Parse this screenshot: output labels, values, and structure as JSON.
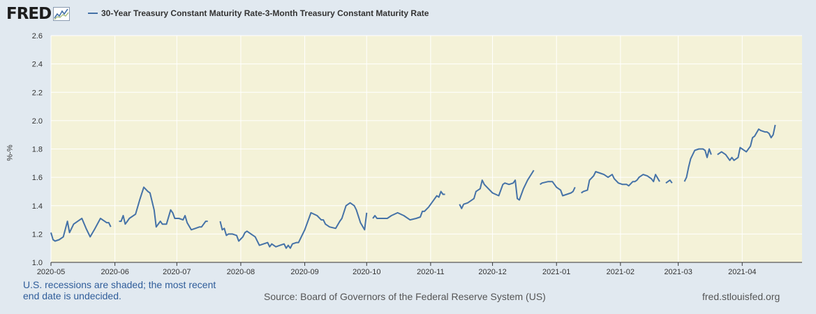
{
  "logo": {
    "text": "FRED",
    "icon": "line-chart-icon"
  },
  "colors": {
    "background": "#e1e9f0",
    "plot_background": "#f4f2d8",
    "series": "#4572a7",
    "accent": "#2f5d9a"
  },
  "footer": {
    "recession_note": "U.S. recessions are shaded; the most recent end date is undecided.",
    "source": "Source: Board of Governors of the Federal Reserve System (US)",
    "site": "fred.stlouisfed.org"
  },
  "chart_data": {
    "type": "line",
    "title": "",
    "xlabel": "",
    "ylabel": "%-%",
    "ylim": [
      1.0,
      2.6
    ],
    "yticks": [
      "1.0",
      "1.2",
      "1.4",
      "1.6",
      "1.8",
      "2.0",
      "2.2",
      "2.4",
      "2.6"
    ],
    "xlim": [
      "2020-05-01",
      "2021-04-30"
    ],
    "xticks": [
      "2020-05",
      "2020-06",
      "2020-07",
      "2020-08",
      "2020-09",
      "2020-10",
      "2020-11",
      "2020-12",
      "2021-01",
      "2021-02",
      "2021-03",
      "2021-04"
    ],
    "grid": true,
    "legend_position": "top-left",
    "series": [
      {
        "name": "30-Year Treasury Constant Maturity Rate-3-Month Treasury Constant Maturity Rate",
        "color": "#4572a7",
        "segments": [
          [
            [
              "2020-05-01",
              1.21
            ],
            [
              "2020-05-02",
              1.16
            ],
            [
              "2020-05-03",
              1.15
            ],
            [
              "2020-05-05",
              1.16
            ],
            [
              "2020-05-07",
              1.18
            ],
            [
              "2020-05-09",
              1.29
            ],
            [
              "2020-05-10",
              1.21
            ],
            [
              "2020-05-12",
              1.27
            ],
            [
              "2020-05-14",
              1.29
            ],
            [
              "2020-05-16",
              1.31
            ],
            [
              "2020-05-18",
              1.24
            ],
            [
              "2020-05-20",
              1.18
            ],
            [
              "2020-05-22",
              1.23
            ],
            [
              "2020-05-25",
              1.31
            ],
            [
              "2020-05-27",
              1.29
            ],
            [
              "2020-05-28",
              1.28
            ],
            [
              "2020-05-29",
              1.28
            ],
            [
              "2020-05-30",
              1.25
            ]
          ],
          [
            [
              "2020-06-03",
              1.29
            ],
            [
              "2020-06-04",
              1.29
            ],
            [
              "2020-06-05",
              1.33
            ],
            [
              "2020-06-06",
              1.27
            ],
            [
              "2020-06-07",
              1.29
            ],
            [
              "2020-06-08",
              1.31
            ],
            [
              "2020-06-11",
              1.34
            ],
            [
              "2020-06-13",
              1.44
            ],
            [
              "2020-06-15",
              1.53
            ],
            [
              "2020-06-17",
              1.5
            ],
            [
              "2020-06-18",
              1.49
            ],
            [
              "2020-06-20",
              1.37
            ],
            [
              "2020-06-21",
              1.25
            ],
            [
              "2020-06-23",
              1.29
            ],
            [
              "2020-06-24",
              1.27
            ],
            [
              "2020-06-26",
              1.27
            ],
            [
              "2020-06-28",
              1.37
            ],
            [
              "2020-06-29",
              1.35
            ],
            [
              "2020-06-30",
              1.31
            ],
            [
              "2020-07-02",
              1.31
            ],
            [
              "2020-07-04",
              1.3
            ],
            [
              "2020-07-05",
              1.33
            ],
            [
              "2020-07-06",
              1.28
            ],
            [
              "2020-07-08",
              1.23
            ],
            [
              "2020-07-10",
              1.24
            ],
            [
              "2020-07-12",
              1.25
            ],
            [
              "2020-07-13",
              1.25
            ],
            [
              "2020-07-15",
              1.29
            ],
            [
              "2020-07-16",
              1.29
            ]
          ],
          [
            [
              "2020-07-22",
              1.29
            ],
            [
              "2020-07-23",
              1.23
            ],
            [
              "2020-07-24",
              1.24
            ],
            [
              "2020-07-25",
              1.19
            ],
            [
              "2020-07-26",
              1.2
            ],
            [
              "2020-07-28",
              1.2
            ],
            [
              "2020-07-30",
              1.19
            ],
            [
              "2020-07-31",
              1.15
            ],
            [
              "2020-08-02",
              1.18
            ],
            [
              "2020-08-03",
              1.21
            ],
            [
              "2020-08-04",
              1.22
            ],
            [
              "2020-08-06",
              1.2
            ],
            [
              "2020-08-08",
              1.18
            ],
            [
              "2020-08-10",
              1.12
            ],
            [
              "2020-08-12",
              1.13
            ],
            [
              "2020-08-14",
              1.14
            ],
            [
              "2020-08-15",
              1.11
            ],
            [
              "2020-08-16",
              1.13
            ],
            [
              "2020-08-18",
              1.11
            ],
            [
              "2020-08-20",
              1.12
            ],
            [
              "2020-08-22",
              1.13
            ],
            [
              "2020-08-23",
              1.1
            ],
            [
              "2020-08-24",
              1.12
            ],
            [
              "2020-08-25",
              1.1
            ],
            [
              "2020-08-26",
              1.13
            ],
            [
              "2020-08-28",
              1.14
            ],
            [
              "2020-08-29",
              1.14
            ],
            [
              "2020-08-31",
              1.2
            ],
            [
              "2020-09-01",
              1.23
            ],
            [
              "2020-09-04",
              1.35
            ],
            [
              "2020-09-07",
              1.33
            ],
            [
              "2020-09-09",
              1.3
            ],
            [
              "2020-09-10",
              1.3
            ],
            [
              "2020-09-11",
              1.27
            ],
            [
              "2020-09-13",
              1.25
            ],
            [
              "2020-09-16",
              1.24
            ],
            [
              "2020-09-18",
              1.29
            ],
            [
              "2020-09-19",
              1.31
            ],
            [
              "2020-09-21",
              1.4
            ],
            [
              "2020-09-23",
              1.42
            ],
            [
              "2020-09-25",
              1.4
            ],
            [
              "2020-09-26",
              1.37
            ],
            [
              "2020-09-28",
              1.28
            ],
            [
              "2020-09-30",
              1.23
            ],
            [
              "2020-10-01",
              1.35
            ]
          ],
          [
            [
              "2020-10-04",
              1.31
            ],
            [
              "2020-10-05",
              1.33
            ],
            [
              "2020-10-06",
              1.31
            ],
            [
              "2020-10-08",
              1.31
            ],
            [
              "2020-10-11",
              1.31
            ],
            [
              "2020-10-13",
              1.33
            ],
            [
              "2020-10-16",
              1.35
            ],
            [
              "2020-10-19",
              1.33
            ],
            [
              "2020-10-22",
              1.3
            ],
            [
              "2020-10-25",
              1.31
            ],
            [
              "2020-10-27",
              1.32
            ],
            [
              "2020-10-28",
              1.36
            ],
            [
              "2020-10-29",
              1.36
            ],
            [
              "2020-10-31",
              1.39
            ],
            [
              "2020-11-02",
              1.43
            ],
            [
              "2020-11-04",
              1.47
            ],
            [
              "2020-11-05",
              1.46
            ],
            [
              "2020-11-06",
              1.5
            ],
            [
              "2020-11-07",
              1.48
            ],
            [
              "2020-11-08",
              1.48
            ]
          ],
          [
            [
              "2020-11-15",
              1.41
            ],
            [
              "2020-11-16",
              1.38
            ],
            [
              "2020-11-17",
              1.41
            ],
            [
              "2020-11-19",
              1.42
            ],
            [
              "2020-11-22",
              1.45
            ],
            [
              "2020-11-23",
              1.5
            ],
            [
              "2020-11-25",
              1.52
            ],
            [
              "2020-11-26",
              1.58
            ],
            [
              "2020-11-27",
              1.55
            ],
            [
              "2020-11-29",
              1.52
            ],
            [
              "2020-12-01",
              1.49
            ],
            [
              "2020-12-04",
              1.47
            ],
            [
              "2020-12-06",
              1.55
            ],
            [
              "2020-12-07",
              1.56
            ],
            [
              "2020-12-09",
              1.55
            ],
            [
              "2020-12-11",
              1.56
            ],
            [
              "2020-12-12",
              1.58
            ],
            [
              "2020-12-13",
              1.45
            ],
            [
              "2020-12-14",
              1.44
            ],
            [
              "2020-12-16",
              1.52
            ],
            [
              "2020-12-18",
              1.58
            ],
            [
              "2020-12-21",
              1.65
            ]
          ],
          [
            [
              "2020-12-24",
              1.55
            ],
            [
              "2020-12-25",
              1.56
            ],
            [
              "2020-12-28",
              1.57
            ],
            [
              "2020-12-30",
              1.57
            ],
            [
              "2021-01-01",
              1.53
            ],
            [
              "2021-01-03",
              1.51
            ],
            [
              "2021-01-04",
              1.47
            ],
            [
              "2021-01-06",
              1.48
            ],
            [
              "2021-01-08",
              1.49
            ],
            [
              "2021-01-09",
              1.5
            ],
            [
              "2021-01-10",
              1.53
            ]
          ],
          [
            [
              "2021-01-13",
              1.49
            ],
            [
              "2021-01-14",
              1.5
            ],
            [
              "2021-01-16",
              1.51
            ],
            [
              "2021-01-17",
              1.58
            ],
            [
              "2021-01-19",
              1.61
            ],
            [
              "2021-01-20",
              1.64
            ],
            [
              "2021-01-22",
              1.63
            ],
            [
              "2021-01-24",
              1.62
            ],
            [
              "2021-01-26",
              1.6
            ],
            [
              "2021-01-28",
              1.62
            ],
            [
              "2021-01-29",
              1.59
            ],
            [
              "2021-01-31",
              1.56
            ],
            [
              "2021-02-02",
              1.55
            ],
            [
              "2021-02-04",
              1.55
            ],
            [
              "2021-02-05",
              1.54
            ],
            [
              "2021-02-07",
              1.57
            ],
            [
              "2021-02-08",
              1.57
            ],
            [
              "2021-02-09",
              1.58
            ],
            [
              "2021-02-10",
              1.6
            ],
            [
              "2021-02-12",
              1.62
            ],
            [
              "2021-02-14",
              1.61
            ],
            [
              "2021-02-16",
              1.59
            ],
            [
              "2021-02-17",
              1.57
            ],
            [
              "2021-02-18",
              1.62
            ],
            [
              "2021-02-20",
              1.57
            ]
          ],
          [
            [
              "2021-02-23",
              1.56
            ],
            [
              "2021-02-24",
              1.57
            ],
            [
              "2021-02-25",
              1.58
            ],
            [
              "2021-02-26",
              1.56
            ]
          ],
          [
            [
              "2021-03-04",
              1.57
            ],
            [
              "2021-03-05",
              1.6
            ],
            [
              "2021-03-06",
              1.67
            ],
            [
              "2021-03-07",
              1.73
            ],
            [
              "2021-03-09",
              1.79
            ],
            [
              "2021-03-11",
              1.8
            ],
            [
              "2021-03-13",
              1.8
            ],
            [
              "2021-03-14",
              1.79
            ],
            [
              "2021-03-15",
              1.74
            ],
            [
              "2021-03-16",
              1.8
            ],
            [
              "2021-03-17",
              1.76
            ]
          ],
          [
            [
              "2021-03-20",
              1.76
            ],
            [
              "2021-03-22",
              1.78
            ],
            [
              "2021-03-24",
              1.76
            ],
            [
              "2021-03-26",
              1.72
            ],
            [
              "2021-03-27",
              1.74
            ],
            [
              "2021-03-28",
              1.72
            ],
            [
              "2021-03-30",
              1.74
            ],
            [
              "2021-03-31",
              1.81
            ],
            [
              "2021-04-03",
              1.78
            ],
            [
              "2021-04-05",
              1.82
            ],
            [
              "2021-04-06",
              1.88
            ],
            [
              "2021-04-07",
              1.89
            ],
            [
              "2021-04-09",
              1.94
            ],
            [
              "2021-04-10",
              1.93
            ],
            [
              "2021-04-12",
              1.92
            ],
            [
              "2021-04-13",
              1.92
            ],
            [
              "2021-04-14",
              1.91
            ],
            [
              "2021-04-15",
              1.88
            ],
            [
              "2021-04-16",
              1.9
            ],
            [
              "2021-04-17",
              1.97
            ]
          ]
        ]
      }
    ]
  }
}
